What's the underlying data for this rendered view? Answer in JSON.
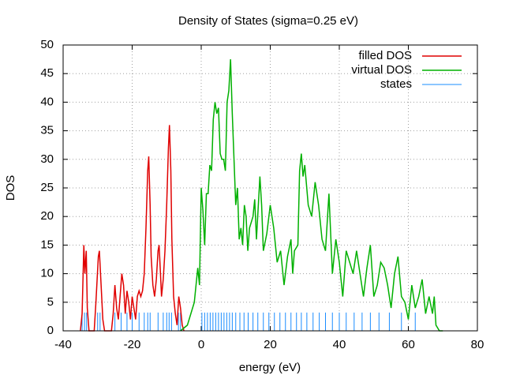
{
  "chart_data": {
    "type": "line",
    "title": "Density of States (sigma=0.25 eV)",
    "xlabel": "energy (eV)",
    "ylabel": "DOS",
    "xlim": [
      -40,
      80
    ],
    "xticks": [
      -40,
      -20,
      0,
      20,
      40,
      60,
      80
    ],
    "ylim": [
      0,
      50
    ],
    "yticks": [
      0,
      5,
      10,
      15,
      20,
      25,
      30,
      35,
      40,
      45,
      50
    ],
    "grid": true,
    "legend": "top-right",
    "series": [
      {
        "name": "filled DOS",
        "color": "#e00000",
        "style": "line",
        "x": [
          -35,
          -34.5,
          -34,
          -33.7,
          -33.3,
          -33,
          -32.5,
          -31,
          -30.5,
          -29.8,
          -29.5,
          -29,
          -28.5,
          -28,
          -26,
          -25.5,
          -25,
          -24.5,
          -24,
          -23.5,
          -23,
          -22.5,
          -22,
          -21.5,
          -21,
          -20.5,
          -20,
          -19.5,
          -19,
          -18.5,
          -18,
          -17.5,
          -17,
          -16.5,
          -16,
          -15.5,
          -15.2,
          -14.8,
          -14.5,
          -14,
          -13.5,
          -13,
          -12.5,
          -12.2,
          -11.8,
          -11.5,
          -11,
          -10.5,
          -10,
          -9.5,
          -9.2,
          -8.8,
          -8.5,
          -8,
          -7.5,
          -7,
          -6.5,
          -6,
          -5.5,
          -5
        ],
        "values": [
          0,
          3,
          15,
          10,
          14,
          4,
          0,
          0,
          5,
          13,
          14,
          8,
          2,
          0,
          0,
          3,
          8,
          4,
          2,
          6,
          10,
          8,
          3,
          7,
          5,
          2,
          6,
          4,
          2,
          6,
          7,
          6,
          7,
          10,
          18,
          28,
          30.5,
          22,
          13,
          8,
          6,
          9,
          14,
          15,
          10,
          6,
          9,
          14,
          22,
          32,
          36,
          28,
          16,
          6,
          3,
          1,
          6,
          4,
          1,
          0
        ]
      },
      {
        "name": "virtual DOS",
        "color": "#00b000",
        "style": "line",
        "x": [
          -6,
          -4,
          -2,
          -1,
          -0.5,
          0,
          0.5,
          1,
          1.5,
          2,
          2.5,
          3,
          3.5,
          4,
          4.5,
          5,
          5.5,
          6,
          6.5,
          7,
          7.5,
          8,
          8.5,
          9,
          9.5,
          10,
          10.5,
          11,
          11.5,
          12,
          12.5,
          13,
          13.5,
          14,
          15,
          15.5,
          16,
          17,
          17.5,
          18,
          19,
          20,
          21,
          22,
          23,
          24,
          25,
          26,
          26.5,
          27,
          28,
          28.5,
          29,
          29.5,
          30,
          31,
          32,
          33,
          34,
          35,
          36,
          37,
          38,
          39,
          40,
          41,
          42,
          43,
          44,
          45,
          46,
          47,
          48,
          49,
          50,
          51,
          52,
          53,
          54,
          55,
          56,
          57,
          58,
          59,
          60,
          61,
          62,
          63,
          64,
          65,
          66,
          67,
          67.5,
          68,
          69,
          70
        ],
        "values": [
          0,
          1,
          5,
          11,
          8,
          25,
          21,
          15,
          24,
          24,
          29,
          28,
          37,
          40,
          38,
          39,
          31,
          30,
          30,
          28,
          40,
          42,
          47.5,
          38,
          30,
          22,
          25,
          16,
          18,
          15,
          22,
          20,
          14,
          18,
          20,
          23,
          16,
          27,
          22,
          14,
          17,
          22,
          18,
          12,
          14,
          8,
          13,
          16,
          10,
          14,
          15,
          28,
          31,
          27,
          29,
          22,
          20,
          26,
          22,
          16,
          14,
          24,
          10,
          16,
          12,
          6,
          14,
          12,
          10,
          14,
          10,
          6,
          11,
          15,
          6,
          8,
          12,
          11,
          8,
          4,
          10,
          13,
          6,
          5,
          2,
          8,
          4,
          6,
          9,
          3,
          6,
          3,
          6,
          1,
          0,
          0
        ]
      },
      {
        "name": "states",
        "color": "#1a8cff",
        "style": "impulses",
        "x": [
          -34.5,
          -33.8,
          -33.2,
          -30,
          -29.3,
          -25,
          -23.2,
          -21.5,
          -20,
          -18,
          -16.5,
          -15.5,
          -14.8,
          -12.5,
          -11,
          -10,
          -9.3,
          -8.6,
          -6.6,
          -6,
          0.2,
          1,
          1.8,
          2.6,
          3.4,
          4.2,
          5,
          5.8,
          6.6,
          7.4,
          8.2,
          9,
          10,
          11.2,
          12.4,
          13.6,
          15,
          16.4,
          18,
          19.6,
          21.2,
          22.8,
          24.4,
          26,
          27.6,
          29,
          30.6,
          32.4,
          34.2,
          36,
          38,
          40,
          42,
          44.3,
          46.6,
          49,
          51.5,
          54.5,
          58,
          62
        ],
        "values": [
          3.2,
          3.2,
          3.2,
          3.2,
          3.2,
          3.2,
          3.2,
          3.2,
          3.2,
          3.2,
          3.2,
          3.2,
          3.2,
          3.2,
          3.2,
          3.2,
          3.2,
          3.2,
          3.2,
          3.2,
          3.2,
          3.2,
          3.2,
          3.2,
          3.2,
          3.2,
          3.2,
          3.2,
          3.2,
          3.2,
          3.2,
          3.2,
          3.2,
          3.2,
          3.2,
          3.2,
          3.2,
          3.2,
          3.2,
          3.2,
          3.2,
          3.2,
          3.2,
          3.2,
          3.2,
          3.2,
          3.2,
          3.2,
          3.2,
          3.2,
          3.2,
          3.2,
          3.2,
          3.2,
          3.2,
          3.2,
          3.2,
          3.2,
          3.2,
          3.2
        ]
      }
    ]
  }
}
